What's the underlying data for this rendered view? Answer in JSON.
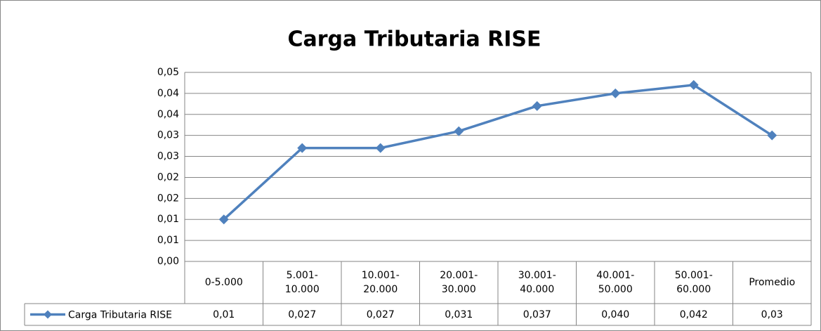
{
  "chart_data": {
    "type": "line",
    "title": "Carga Tributaria RISE",
    "categories": [
      "0-5.000",
      "5.001-10.000",
      "10.001-20.000",
      "20.001-30.000",
      "30.001-40.000",
      "40.001-50.000",
      "50.001-60.000",
      "Promedio"
    ],
    "series": [
      {
        "name": "Carga Tributaria RISE",
        "color": "#4f81bd",
        "values": [
          0.01,
          0.027,
          0.027,
          0.031,
          0.037,
          0.04,
          0.042,
          0.03
        ],
        "value_labels": [
          "0,01",
          "0,027",
          "0,027",
          "0,031",
          "0,037",
          "0,040",
          "0,042",
          "0,03"
        ]
      }
    ],
    "ylim": [
      0,
      0.045
    ],
    "yticks": [
      {
        "value": 0,
        "label": "0,00"
      },
      {
        "value": 0.005,
        "label": "0,01"
      },
      {
        "value": 0.01,
        "label": "0,01"
      },
      {
        "value": 0.015,
        "label": "0,02"
      },
      {
        "value": 0.02,
        "label": "0,02"
      },
      {
        "value": 0.025,
        "label": "0,03"
      },
      {
        "value": 0.03,
        "label": "0,03"
      },
      {
        "value": 0.035,
        "label": "0,04"
      },
      {
        "value": 0.04,
        "label": "0,04"
      },
      {
        "value": 0.045,
        "label": "0,05"
      }
    ],
    "grid": true,
    "data_table": true
  }
}
